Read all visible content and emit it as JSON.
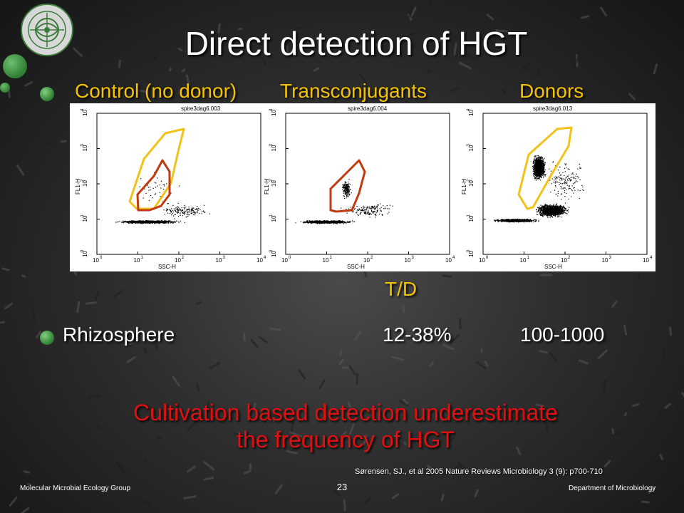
{
  "title": "Direct detection of HGT",
  "columns": [
    "Control (no donor)",
    "Transconjugants",
    "Donors"
  ],
  "plots": [
    {
      "file": "spire3dag6.003",
      "xlabel": "SSC-H",
      "ylabel": "FL1-H"
    },
    {
      "file": "spire3dag6.004",
      "xlabel": "SSC-H",
      "ylabel": "FL1-H"
    },
    {
      "file": "spire3dag6.013",
      "xlabel": "SSC-H",
      "ylabel": "FL1-H"
    }
  ],
  "axis_exponents": [
    "0",
    "1",
    "2",
    "3",
    "4"
  ],
  "axis_base": "10",
  "ratio_header": "T/D",
  "row": {
    "label": "Rhizosphere",
    "value1": "12-38%",
    "value2": "100-1000"
  },
  "conclusion": [
    "Cultivation based detection underestimate",
    "the frequency of HGT"
  ],
  "citation": "Sørensen, SJ., et al 2005 Nature Reviews Microbiology 3 (9): p700-710",
  "footer": {
    "left": "Molecular Microbial Ecology Group",
    "page": "23",
    "right": "Department of Microbiology"
  },
  "colors": {
    "gate_yellow": "#f2c21a",
    "gate_red": "#c0390f",
    "header_yellow": "#f5c200",
    "conclusion_red": "#e01010",
    "bullet_green": "#2e7d32"
  }
}
